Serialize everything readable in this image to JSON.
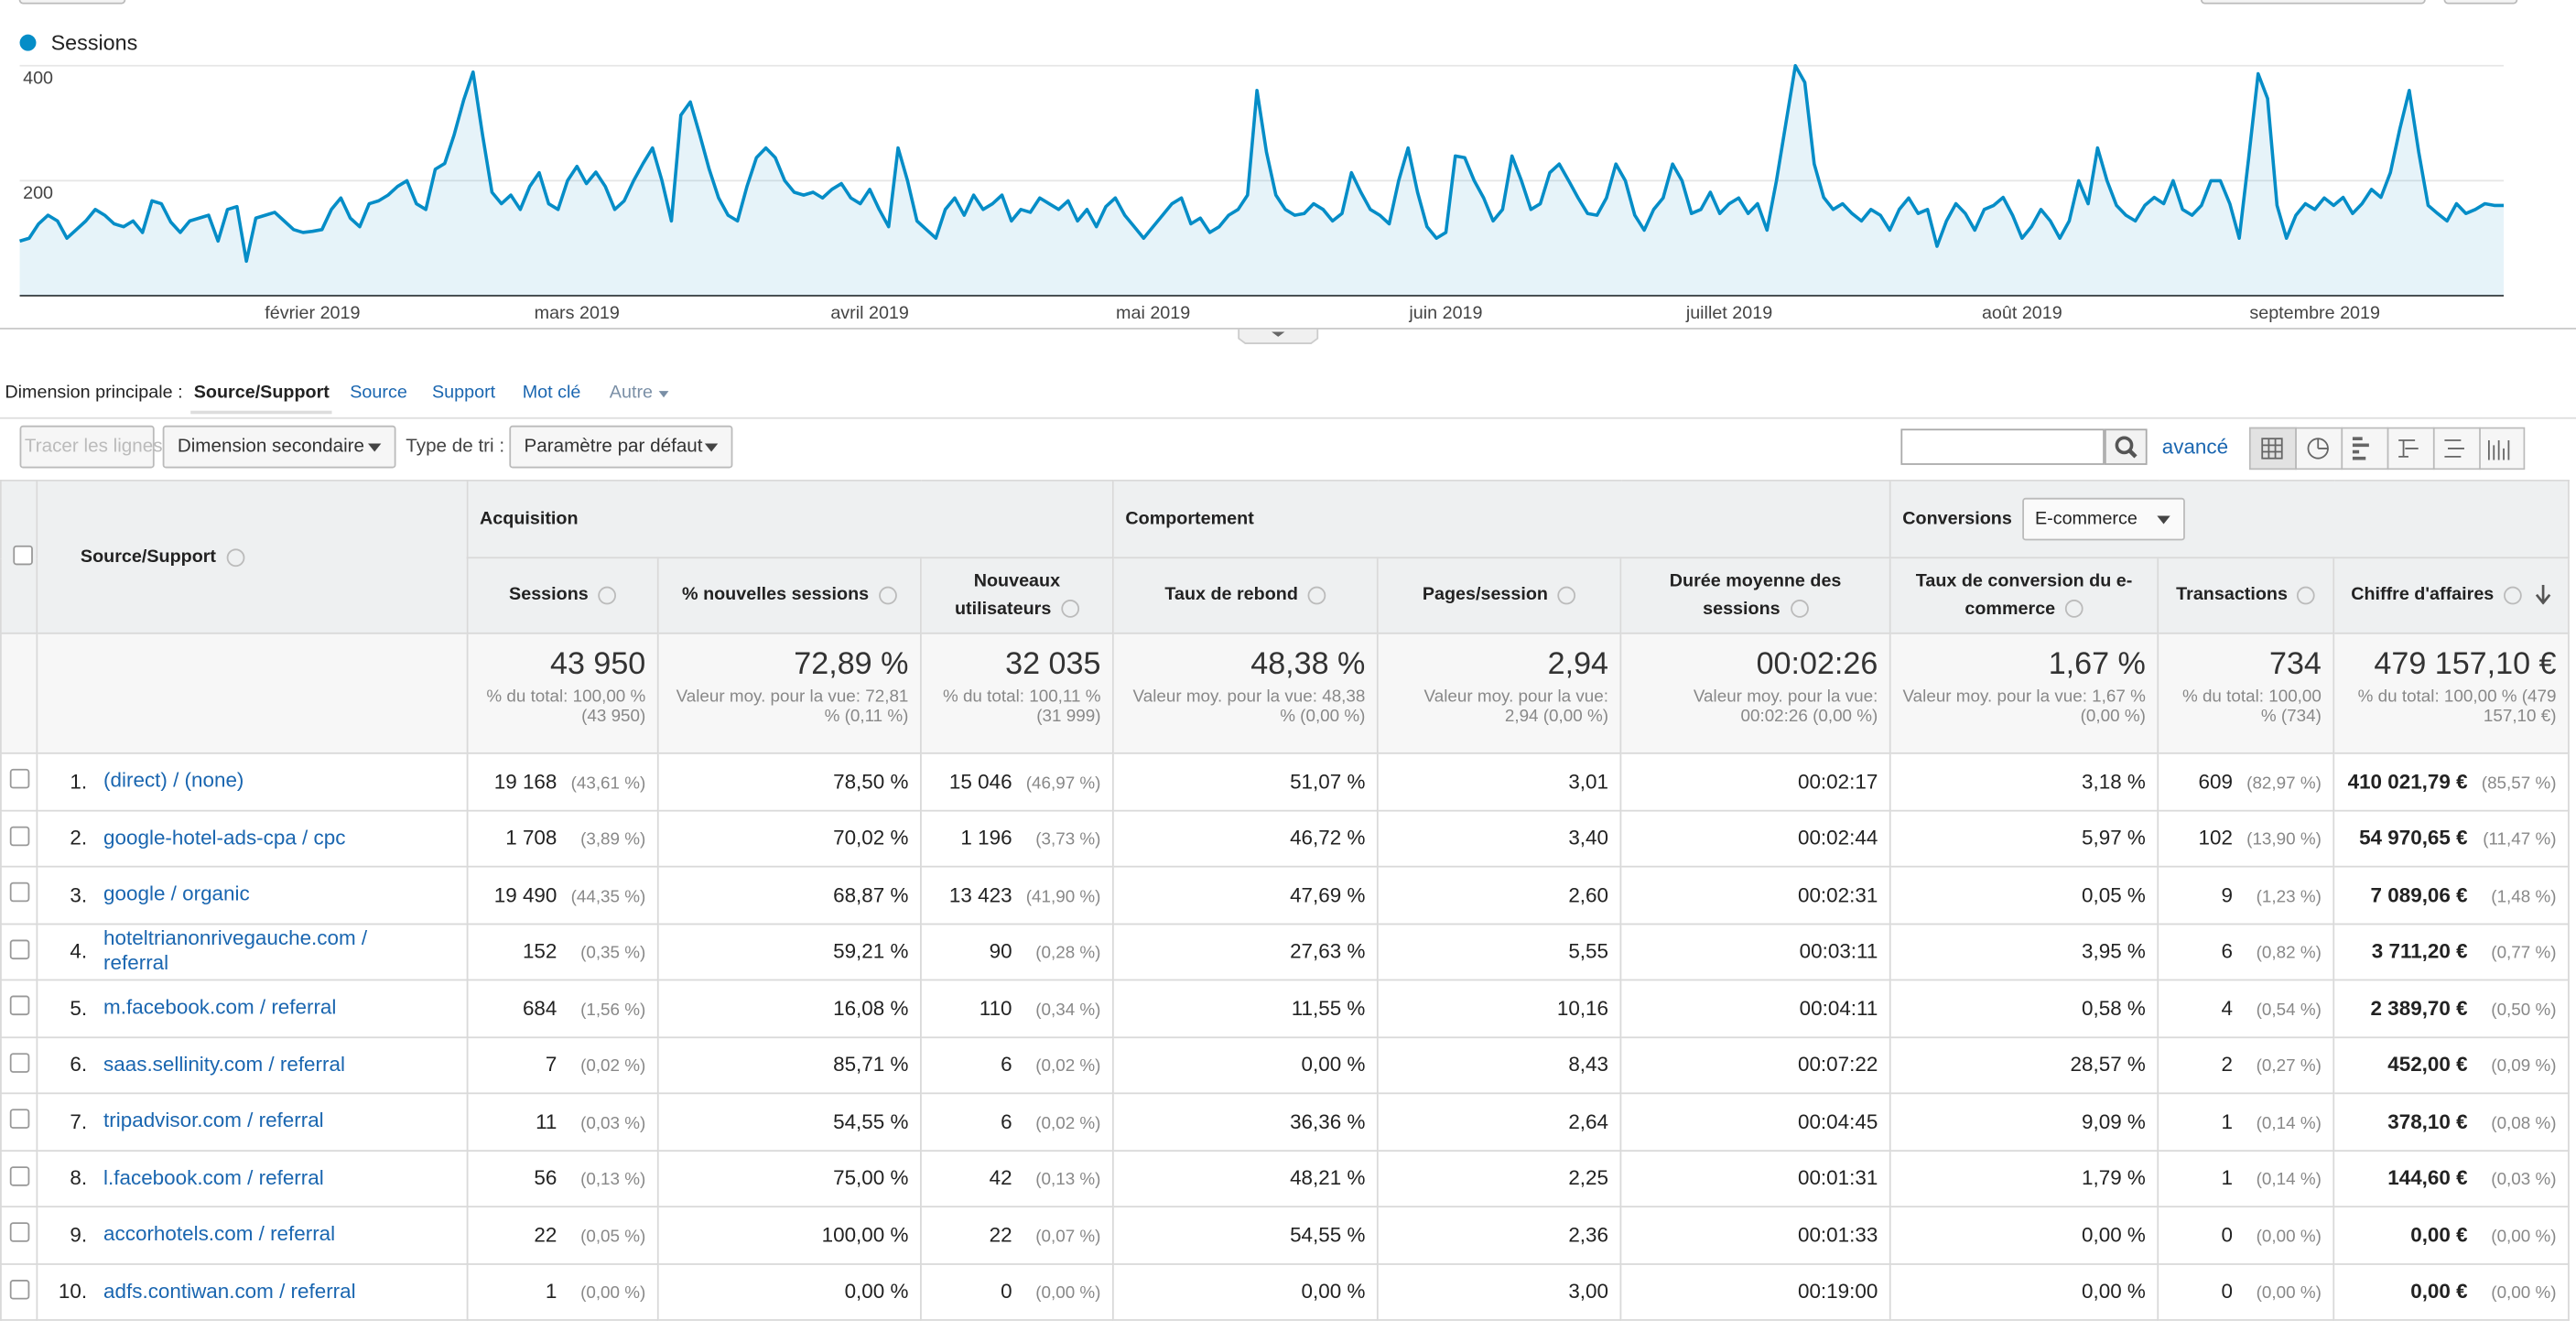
{
  "chart_data": {
    "type": "line",
    "legend": "top-left",
    "series": [
      {
        "name": "Sessions",
        "color": "#058dc7",
        "values": [
          95,
          100,
          125,
          140,
          130,
          100,
          115,
          130,
          150,
          140,
          125,
          120,
          130,
          110,
          165,
          160,
          128,
          110,
          130,
          135,
          140,
          95,
          150,
          155,
          60,
          135,
          140,
          145,
          130,
          115,
          110,
          112,
          115,
          150,
          170,
          135,
          120,
          160,
          165,
          175,
          190,
          200,
          160,
          150,
          220,
          230,
          280,
          340,
          389,
          280,
          180,
          160,
          175,
          150,
          190,
          214,
          160,
          150,
          200,
          225,
          195,
          215,
          190,
          150,
          165,
          200,
          230,
          257,
          200,
          130,
          314,
          337,
          280,
          220,
          170,
          140,
          130,
          190,
          240,
          257,
          240,
          200,
          180,
          175,
          180,
          170,
          185,
          195,
          170,
          160,
          185,
          150,
          120,
          257,
          200,
          130,
          115,
          100,
          150,
          170,
          140,
          175,
          150,
          160,
          175,
          130,
          150,
          145,
          170,
          160,
          150,
          165,
          130,
          150,
          120,
          155,
          170,
          140,
          120,
          100,
          120,
          140,
          160,
          170,
          125,
          135,
          110,
          120,
          140,
          150,
          175,
          357,
          250,
          175,
          150,
          140,
          143,
          160,
          150,
          130,
          143,
          214,
          180,
          150,
          140,
          125,
          200,
          257,
          180,
          120,
          100,
          110,
          243,
          240,
          200,
          170,
          130,
          150,
          243,
          200,
          150,
          160,
          214,
          229,
          200,
          170,
          143,
          140,
          170,
          229,
          200,
          140,
          114,
          150,
          170,
          229,
          200,
          143,
          150,
          180,
          143,
          160,
          170,
          143,
          160,
          114,
          200,
          300,
          400,
          371,
          229,
          171,
          150,
          160,
          143,
          130,
          150,
          140,
          114,
          150,
          170,
          143,
          150,
          86,
          130,
          160,
          143,
          114,
          150,
          157,
          171,
          140,
          100,
          120,
          150,
          130,
          100,
          130,
          200,
          160,
          257,
          200,
          157,
          140,
          130,
          157,
          171,
          160,
          200,
          150,
          140,
          157,
          200,
          200,
          160,
          100,
          240,
          386,
          343,
          157,
          100,
          140,
          160,
          150,
          170,
          157,
          171,
          143,
          160,
          185,
          171,
          214,
          290,
          357,
          250,
          157,
          143,
          130,
          160,
          143,
          150,
          160,
          157,
          157
        ]
      }
    ],
    "xlim": [
      0,
      263
    ],
    "xticks": [
      {
        "value": 31,
        "label": "février 2019"
      },
      {
        "value": 59,
        "label": "mars 2019"
      },
      {
        "value": 90,
        "label": "avril 2019"
      },
      {
        "value": 120,
        "label": "mai 2019"
      },
      {
        "value": 151,
        "label": "juin 2019"
      },
      {
        "value": 181,
        "label": "juillet 2019"
      },
      {
        "value": 212,
        "label": "août 2019"
      },
      {
        "value": 243,
        "label": "septembre 2019"
      }
    ],
    "ylim": [
      0,
      400
    ],
    "yticks": [
      200,
      400
    ],
    "grid": true
  },
  "dimension_bar": {
    "label": "Dimension principale :",
    "options": [
      "Source/Support",
      "Source",
      "Support",
      "Mot clé",
      "Autre"
    ]
  },
  "toolbar": {
    "plot_rows": "Tracer les lignes",
    "secondary_dimension": "Dimension secondaire",
    "sort_label": "Type de tri :",
    "sort_value": "Paramètre par défaut",
    "advanced": "avancé"
  },
  "table": {
    "groups": [
      "Acquisition",
      "Comportement",
      "Conversions"
    ],
    "conversion_select": "E-commerce",
    "columns": [
      "Source/Support",
      "Sessions",
      "% nouvelles sessions",
      "Nouveaux utilisateurs",
      "Taux de rebond",
      "Pages/session",
      "Durée moyenne des sessions",
      "Taux de conversion du e-commerce",
      "Transactions",
      "Chiffre d'affaires"
    ],
    "totals": [
      [
        "43 950",
        "% du total: 100,00 % (43 950)"
      ],
      [
        "72,89 %",
        "Valeur moy. pour la vue: 72,81 % (0,11 %)"
      ],
      [
        "32 035",
        "% du total: 100,11 % (31 999)"
      ],
      [
        "48,38 %",
        "Valeur moy. pour la vue: 48,38 % (0,00 %)"
      ],
      [
        "2,94",
        "Valeur moy. pour la vue: 2,94 (0,00 %)"
      ],
      [
        "00:02:26",
        "Valeur moy. pour la vue: 00:02:26 (0,00 %)"
      ],
      [
        "1,67 %",
        "Valeur moy. pour la vue: 1,67 % (0,00 %)"
      ],
      [
        "734",
        "% du total: 100,00 % (734)"
      ],
      [
        "479 157,10 €",
        "% du total: 100,00 % (479 157,10 €)"
      ]
    ],
    "rows": [
      {
        "rank": "1.",
        "source": "(direct) / (none)",
        "cells": [
          [
            "19 168",
            "(43,61 %)"
          ],
          [
            "78,50 %"
          ],
          [
            "15 046",
            "(46,97 %)"
          ],
          [
            "51,07 %"
          ],
          [
            "3,01"
          ],
          [
            "00:02:17"
          ],
          [
            "3,18 %"
          ],
          [
            "609",
            "(82,97 %)"
          ],
          [
            "410 021,79 €",
            "(85,57 %)"
          ]
        ]
      },
      {
        "rank": "2.",
        "source": "google-hotel-ads-cpa / cpc",
        "cells": [
          [
            "1 708",
            "(3,89 %)"
          ],
          [
            "70,02 %"
          ],
          [
            "1 196",
            "(3,73 %)"
          ],
          [
            "46,72 %"
          ],
          [
            "3,40"
          ],
          [
            "00:02:44"
          ],
          [
            "5,97 %"
          ],
          [
            "102",
            "(13,90 %)"
          ],
          [
            "54 970,65 €",
            "(11,47 %)"
          ]
        ]
      },
      {
        "rank": "3.",
        "source": "google / organic",
        "cells": [
          [
            "19 490",
            "(44,35 %)"
          ],
          [
            "68,87 %"
          ],
          [
            "13 423",
            "(41,90 %)"
          ],
          [
            "47,69 %"
          ],
          [
            "2,60"
          ],
          [
            "00:02:31"
          ],
          [
            "0,05 %"
          ],
          [
            "9",
            "(1,23 %)"
          ],
          [
            "7 089,06 €",
            "(1,48 %)"
          ]
        ]
      },
      {
        "rank": "4.",
        "source": "hoteltrianonrivegauche.com / referral",
        "cells": [
          [
            "152",
            "(0,35 %)"
          ],
          [
            "59,21 %"
          ],
          [
            "90",
            "(0,28 %)"
          ],
          [
            "27,63 %"
          ],
          [
            "5,55"
          ],
          [
            "00:03:11"
          ],
          [
            "3,95 %"
          ],
          [
            "6",
            "(0,82 %)"
          ],
          [
            "3 711,20 €",
            "(0,77 %)"
          ]
        ]
      },
      {
        "rank": "5.",
        "source": "m.facebook.com / referral",
        "cells": [
          [
            "684",
            "(1,56 %)"
          ],
          [
            "16,08 %"
          ],
          [
            "110",
            "(0,34 %)"
          ],
          [
            "11,55 %"
          ],
          [
            "10,16"
          ],
          [
            "00:04:11"
          ],
          [
            "0,58 %"
          ],
          [
            "4",
            "(0,54 %)"
          ],
          [
            "2 389,70 €",
            "(0,50 %)"
          ]
        ]
      },
      {
        "rank": "6.",
        "source": "saas.sellinity.com / referral",
        "cells": [
          [
            "7",
            "(0,02 %)"
          ],
          [
            "85,71 %"
          ],
          [
            "6",
            "(0,02 %)"
          ],
          [
            "0,00 %"
          ],
          [
            "8,43"
          ],
          [
            "00:07:22"
          ],
          [
            "28,57 %"
          ],
          [
            "2",
            "(0,27 %)"
          ],
          [
            "452,00 €",
            "(0,09 %)"
          ]
        ]
      },
      {
        "rank": "7.",
        "source": "tripadvisor.com / referral",
        "cells": [
          [
            "11",
            "(0,03 %)"
          ],
          [
            "54,55 %"
          ],
          [
            "6",
            "(0,02 %)"
          ],
          [
            "36,36 %"
          ],
          [
            "2,64"
          ],
          [
            "00:04:45"
          ],
          [
            "9,09 %"
          ],
          [
            "1",
            "(0,14 %)"
          ],
          [
            "378,10 €",
            "(0,08 %)"
          ]
        ]
      },
      {
        "rank": "8.",
        "source": "l.facebook.com / referral",
        "cells": [
          [
            "56",
            "(0,13 %)"
          ],
          [
            "75,00 %"
          ],
          [
            "42",
            "(0,13 %)"
          ],
          [
            "48,21 %"
          ],
          [
            "2,25"
          ],
          [
            "00:01:31"
          ],
          [
            "1,79 %"
          ],
          [
            "1",
            "(0,14 %)"
          ],
          [
            "144,60 €",
            "(0,03 %)"
          ]
        ]
      },
      {
        "rank": "9.",
        "source": "accorhotels.com / referral",
        "cells": [
          [
            "22",
            "(0,05 %)"
          ],
          [
            "100,00 %"
          ],
          [
            "22",
            "(0,07 %)"
          ],
          [
            "54,55 %"
          ],
          [
            "2,36"
          ],
          [
            "00:01:33"
          ],
          [
            "0,00 %"
          ],
          [
            "0",
            "(0,00 %)"
          ],
          [
            "0,00 €",
            "(0,00 %)"
          ]
        ]
      },
      {
        "rank": "10.",
        "source": "adfs.contiwan.com / referral",
        "cells": [
          [
            "1",
            "(0,00 %)"
          ],
          [
            "0,00 %"
          ],
          [
            "0",
            "(0,00 %)"
          ],
          [
            "0,00 %"
          ],
          [
            "3,00"
          ],
          [
            "00:19:00"
          ],
          [
            "0,00 %"
          ],
          [
            "0",
            "(0,00 %)"
          ],
          [
            "0,00 €",
            "(0,00 %)"
          ]
        ]
      }
    ]
  }
}
